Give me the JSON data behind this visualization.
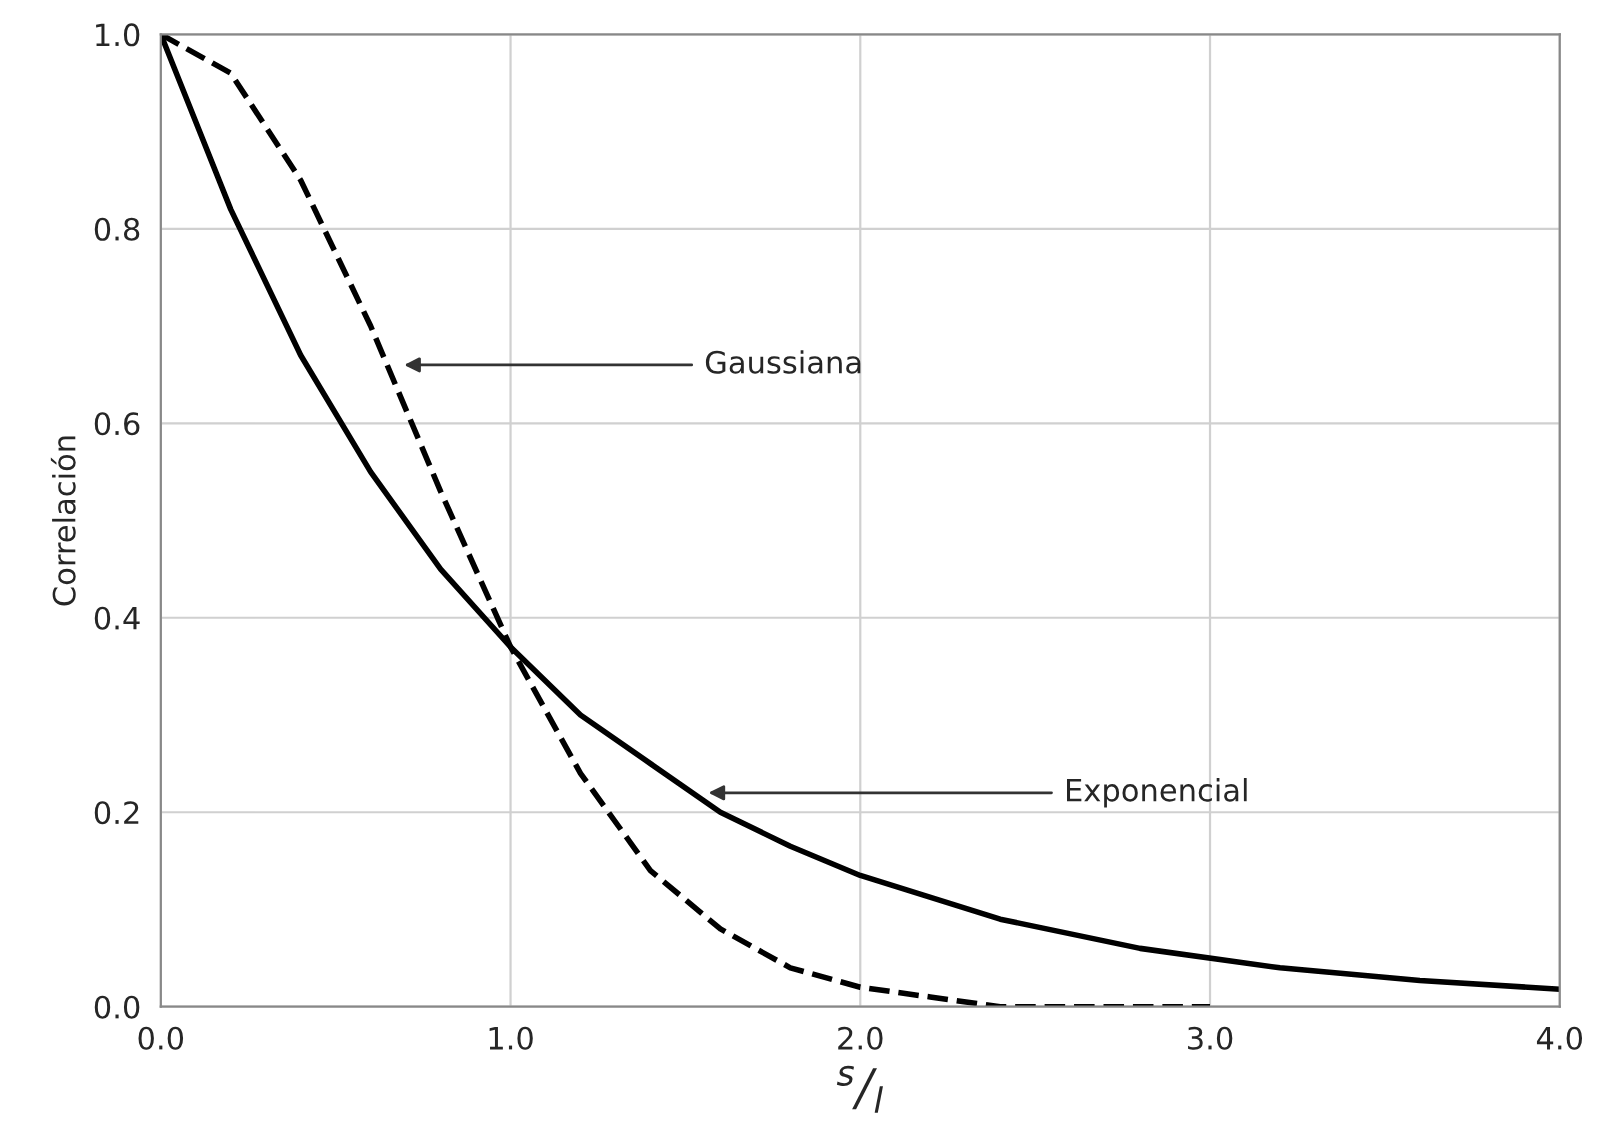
{
  "chart_data": {
    "type": "line",
    "xlabel": "$^{s}$/$_{l}$",
    "ylabel": "Correlación",
    "series": [
      {
        "color": "#000000",
        "line_style": "solid",
        "x": [
          0,
          0.2,
          0.4,
          0.6,
          0.8,
          1.0,
          1.2,
          1.4,
          1.6,
          1.8,
          2.0,
          2.4,
          2.8,
          3.2,
          3.6,
          4.0
        ],
        "values": [
          1.0,
          0.82,
          0.67,
          0.55,
          0.45,
          0.37,
          0.3,
          0.25,
          0.2,
          0.165,
          0.135,
          0.09,
          0.06,
          0.04,
          0.027,
          0.018
        ]
      },
      {
        "color": "#000000",
        "line_style": "dashed",
        "x": [
          0,
          0.2,
          0.4,
          0.6,
          0.8,
          1.0,
          1.2,
          1.4,
          1.6,
          1.8,
          2.0,
          2.2,
          2.4,
          3.0
        ],
        "values": [
          1.0,
          0.96,
          0.85,
          0.7,
          0.53,
          0.37,
          0.24,
          0.14,
          0.08,
          0.04,
          0.02,
          0.01,
          0.0,
          0.0
        ]
      }
    ],
    "annotations": [
      {
        "text": "Gaussiana",
        "x": 0.68,
        "y": 0.66
      },
      {
        "text": "Exponencial",
        "x": 1.55,
        "y": 0.22
      }
    ],
    "xlim": [
      0,
      4
    ],
    "ylim": [
      0,
      1
    ],
    "xticks": [
      {
        "value": 0,
        "label": "0.0"
      },
      {
        "value": 1,
        "label": "1.0"
      },
      {
        "value": 2,
        "label": "2.0"
      },
      {
        "value": 3,
        "label": "3.0"
      },
      {
        "value": 4,
        "label": "4.0"
      }
    ],
    "yticks": [
      {
        "value": 0,
        "label": "0.0"
      },
      {
        "value": 0.2,
        "label": "0.2"
      },
      {
        "value": 0.4,
        "label": "0.4"
      },
      {
        "value": 0.6,
        "label": "0.6"
      },
      {
        "value": 0.8,
        "label": "0.8"
      },
      {
        "value": 1.0,
        "label": "1.0"
      }
    ],
    "grid": true
  }
}
